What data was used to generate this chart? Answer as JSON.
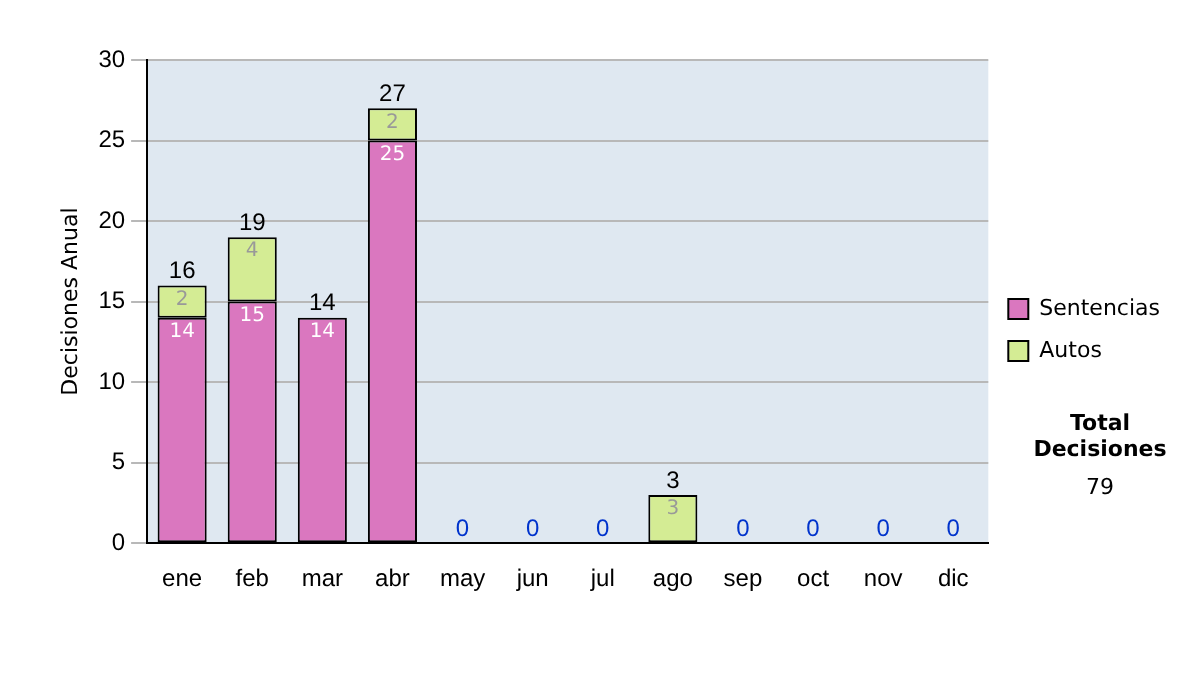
{
  "chart_data": {
    "type": "bar",
    "ylabel": "Decisiones Anual",
    "categories": [
      "ene",
      "feb",
      "mar",
      "abr",
      "may",
      "jun",
      "jul",
      "ago",
      "sep",
      "oct",
      "nov",
      "dic"
    ],
    "series": [
      {
        "name": "Sentencias",
        "color": "#da77bf",
        "values": [
          14,
          15,
          14,
          25,
          0,
          0,
          0,
          0,
          0,
          0,
          0,
          0
        ],
        "value_labels": [
          "14",
          "15",
          "14",
          "25",
          null,
          null,
          null,
          null,
          null,
          null,
          null,
          null
        ]
      },
      {
        "name": "Autos",
        "color": "#d4ec94",
        "values": [
          2,
          4,
          0,
          2,
          0,
          0,
          0,
          3,
          0,
          0,
          0,
          0
        ],
        "value_labels": [
          "2",
          "4",
          null,
          "2",
          null,
          null,
          null,
          "3",
          null,
          null,
          null,
          null
        ]
      }
    ],
    "stacked": true,
    "totals": [
      "16",
      "19",
      "14",
      "27",
      "0",
      "0",
      "0",
      "3",
      "0",
      "0",
      "0",
      "0"
    ],
    "ylim": [
      0,
      30
    ],
    "yticks": [
      0,
      5,
      10,
      15,
      20,
      25,
      30
    ],
    "grid": "y",
    "legend": "right",
    "annotations": [
      "Total Decisiones",
      "79"
    ]
  }
}
